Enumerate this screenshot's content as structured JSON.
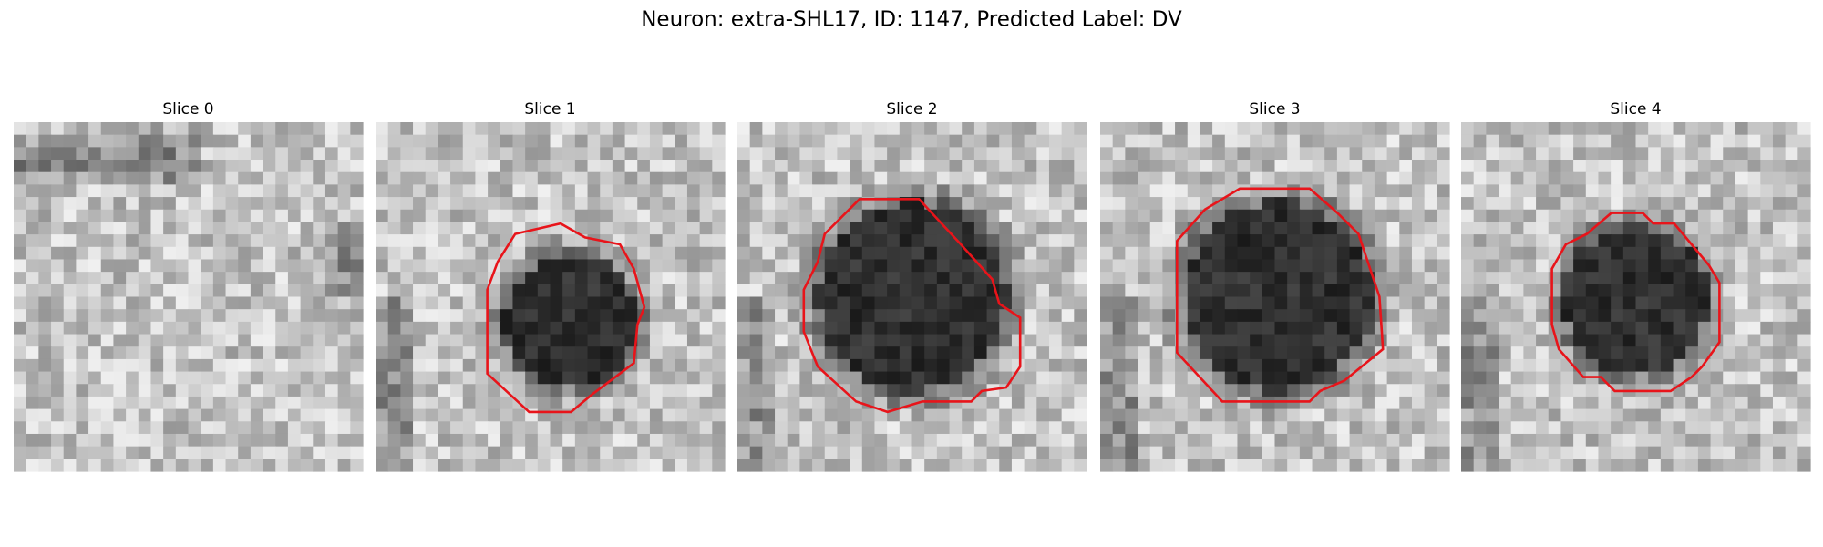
{
  "title": "Neuron: extra-SHL17, ID: 1147, Predicted Label: DV",
  "panels": [
    {
      "title": "Slice 0"
    },
    {
      "title": "Slice 1"
    },
    {
      "title": "Slice 2"
    },
    {
      "title": "Slice 3"
    },
    {
      "title": "Slice 4"
    }
  ]
}
